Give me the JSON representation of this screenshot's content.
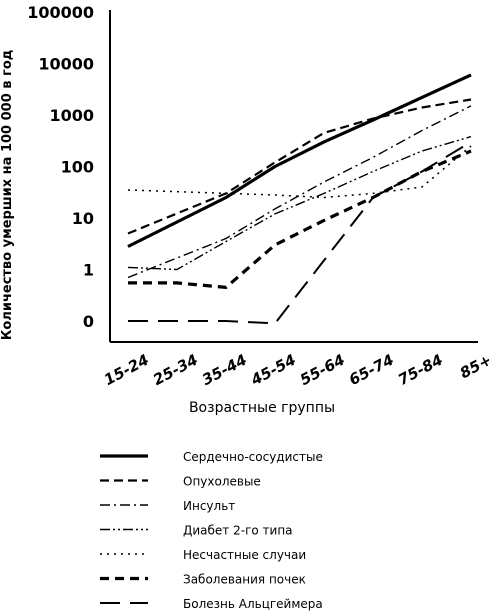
{
  "chart_data": {
    "type": "line",
    "title": "",
    "xlabel": "Возрастные группы",
    "ylabel": "Количество умерших на 100 000 в год",
    "y_scale": "log",
    "ylim": [
      0.1,
      100000
    ],
    "y_ticks": [
      {
        "value": 100000,
        "label": "100000"
      },
      {
        "value": 10000,
        "label": "10000"
      },
      {
        "value": 1000,
        "label": "1000"
      },
      {
        "value": 100,
        "label": "100"
      },
      {
        "value": 10,
        "label": "10"
      },
      {
        "value": 1,
        "label": "1"
      },
      {
        "value": 0.1,
        "label": "0"
      }
    ],
    "categories": [
      "15-24",
      "25-34",
      "35-44",
      "45-54",
      "55-64",
      "65-74",
      "75-84",
      "85+"
    ],
    "legend_position": "bottom",
    "grid": false,
    "series": [
      {
        "name": "Сердечно-сосудистые",
        "style": "solid",
        "values": [
          2.8,
          null,
          25,
          100,
          300,
          800,
          2200,
          6000
        ]
      },
      {
        "name": "Опухолевые",
        "style": "dashed",
        "values": [
          5,
          null,
          30,
          120,
          450,
          850,
          1400,
          2000
        ]
      },
      {
        "name": "Инсульт",
        "style": "dashdot",
        "values": [
          0.7,
          null,
          4,
          15,
          50,
          150,
          500,
          1500
        ]
      },
      {
        "name": "Диабет 2-го типа",
        "style": "dashdotdot",
        "values": [
          1.1,
          1.0,
          3.5,
          12,
          30,
          80,
          200,
          380
        ]
      },
      {
        "name": "Несчастные случаи",
        "style": "dotted",
        "values": [
          35,
          null,
          null,
          28,
          25,
          30,
          40,
          250
        ]
      },
      {
        "name": "Заболевания почек",
        "style": "thickdashed",
        "values": [
          0.55,
          0.55,
          0.45,
          3,
          9,
          25,
          80,
          200
        ]
      },
      {
        "name": "Болезнь Альцгеймера",
        "style": "longdashed",
        "values": [
          0.1,
          0.1,
          0.1,
          0.09,
          1.5,
          25,
          80,
          300
        ]
      }
    ]
  }
}
